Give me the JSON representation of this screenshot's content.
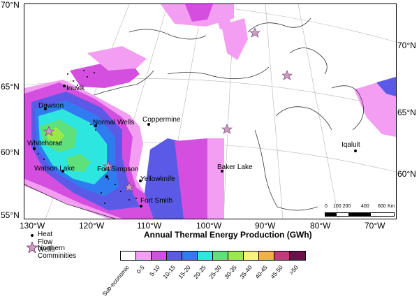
{
  "lat_left": [
    "70°N",
    "65°N",
    "60°N",
    "55°N"
  ],
  "lat_right": [
    "70°N",
    "65°N",
    "60°N"
  ],
  "lon_labels": [
    "130°W",
    "120°W",
    "110°W",
    "100°W",
    "90°W",
    "80°W",
    "70°W"
  ],
  "cities": [
    {
      "name": "Inuvik"
    },
    {
      "name": "Dawson"
    },
    {
      "name": "Normal Wells"
    },
    {
      "name": "Coppermine"
    },
    {
      "name": "Whitehorse"
    },
    {
      "name": "Watson Lake"
    },
    {
      "name": "Fort Simpson"
    },
    {
      "name": "Yellowknife"
    },
    {
      "name": "Fort Smith"
    },
    {
      "name": "Baker Lake"
    },
    {
      "name": "Iqaluit"
    }
  ],
  "scale": {
    "ticks": [
      "0",
      "100 200",
      "400",
      "600"
    ],
    "unit": "Km"
  },
  "legend": {
    "wells_label": "Heat Flow Wells",
    "communities_label": "Northern Comminities",
    "title": "Annual Thermal Energy Production (GWh)",
    "classes": [
      {
        "label": "Sub-economic",
        "color": "#ffffff"
      },
      {
        "label": "0-5",
        "color": "#f39df3"
      },
      {
        "label": "5-10",
        "color": "#d44fe0"
      },
      {
        "label": "10-15",
        "color": "#5a5ae6"
      },
      {
        "label": "15-20",
        "color": "#2f7cf0"
      },
      {
        "label": "20-25",
        "color": "#2ee6e0"
      },
      {
        "label": "25-30",
        "color": "#5fe07a"
      },
      {
        "label": "30-35",
        "color": "#9be84a"
      },
      {
        "label": "35-40",
        "color": "#f6f27a"
      },
      {
        "label": "40-45",
        "color": "#f2b04a"
      },
      {
        "label": "45-50",
        "color": "#c23a7a"
      },
      {
        "label": ">50",
        "color": "#6e0f4a"
      }
    ]
  }
}
